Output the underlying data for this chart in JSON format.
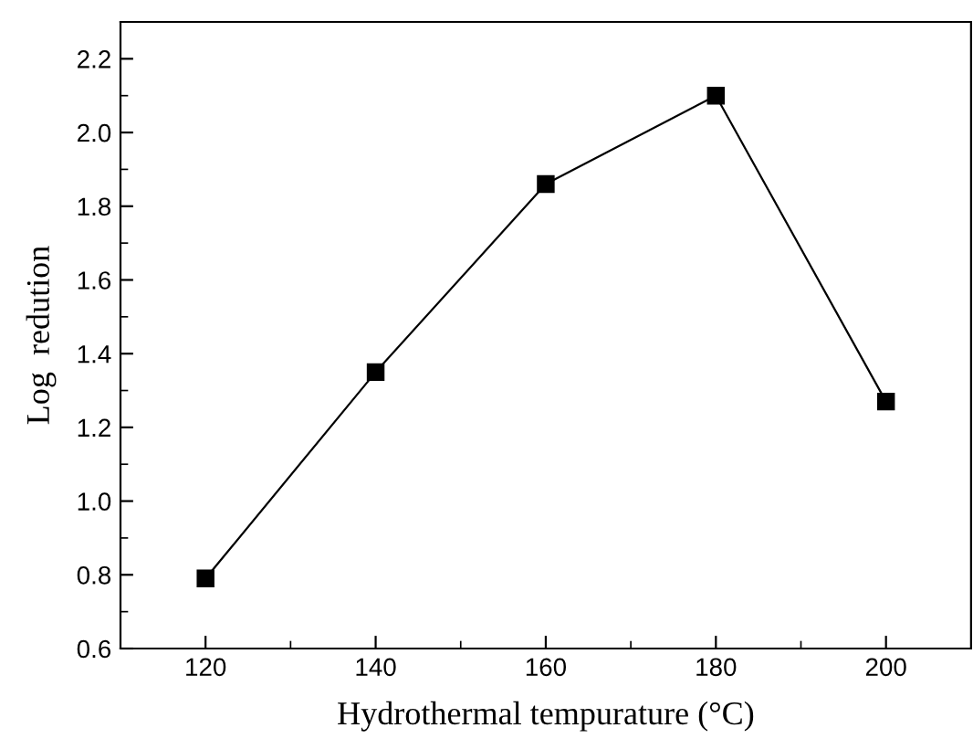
{
  "chart_data": {
    "type": "line",
    "xlabel": "Hydrothermal tempurature (°C)",
    "ylabel": "Log  redution",
    "x": [
      120,
      140,
      160,
      180,
      200
    ],
    "series": [
      {
        "color": "#000000",
        "values": [
          0.79,
          1.35,
          1.86,
          2.1,
          1.27
        ]
      }
    ],
    "xlim": [
      110,
      210
    ],
    "ylim": [
      0.6,
      2.3
    ],
    "xticks": [
      120,
      140,
      160,
      180,
      200
    ],
    "yticks": [
      0.6,
      0.8,
      {
        "value": 1,
        "label": "1.0"
      },
      1.2,
      1.4,
      1.6,
      1.8,
      {
        "value": 2,
        "label": "2.0"
      },
      2.2
    ],
    "marker": "square",
    "line_style": "solid",
    "grid": false,
    "legend": false
  }
}
